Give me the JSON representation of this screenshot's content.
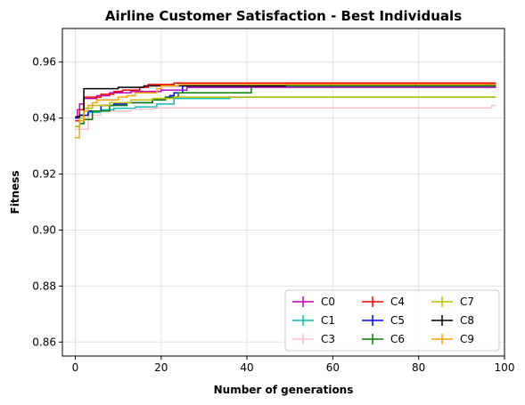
{
  "chart_data": {
    "type": "line",
    "title": "Airline Customer Satisfaction - Best Individuals",
    "xlabel": "Number of generations",
    "ylabel": "Fitness",
    "xlim": [
      -3,
      100
    ],
    "ylim": [
      0.855,
      0.972
    ],
    "xticks": [
      0,
      20,
      40,
      60,
      80,
      100
    ],
    "yticks": [
      0.86,
      0.88,
      0.9,
      0.92,
      0.94,
      0.96
    ],
    "ytick_labels": [
      "0.86",
      "0.88",
      "0.90",
      "0.92",
      "0.94",
      "0.96"
    ],
    "grid": true,
    "legend": {
      "placement": "lower-right",
      "columns": 3
    },
    "series": [
      {
        "name": "C0",
        "color": "#bf00bf",
        "points": [
          [
            0,
            0.94
          ],
          [
            0.5,
            0.943
          ],
          [
            1,
            0.945
          ],
          [
            2,
            0.947
          ],
          [
            5,
            0.948
          ],
          [
            8,
            0.949
          ],
          [
            13,
            0.9495
          ],
          [
            20,
            0.95
          ],
          [
            26,
            0.951
          ],
          [
            98,
            0.951
          ]
        ]
      },
      {
        "name": "C1",
        "color": "#00bfbf",
        "points": [
          [
            0,
            0.936
          ],
          [
            1,
            0.939
          ],
          [
            2,
            0.9395
          ],
          [
            3,
            0.942
          ],
          [
            6,
            0.943
          ],
          [
            9,
            0.9435
          ],
          [
            14,
            0.944
          ],
          [
            19,
            0.945
          ],
          [
            23,
            0.947
          ],
          [
            35,
            0.947
          ],
          [
            36,
            0.9475
          ],
          [
            98,
            0.9475
          ]
        ]
      },
      {
        "name": "C3",
        "color": "#ffc0cb",
        "points": [
          [
            0,
            0.936
          ],
          [
            2,
            0.936
          ],
          [
            3,
            0.941
          ],
          [
            6,
            0.9425
          ],
          [
            13,
            0.9432
          ],
          [
            18,
            0.9436
          ],
          [
            96,
            0.9436
          ],
          [
            97,
            0.9445
          ],
          [
            98,
            0.9445
          ]
        ]
      },
      {
        "name": "C4",
        "color": "#ff0000",
        "points": [
          [
            0,
            0.939
          ],
          [
            1,
            0.943
          ],
          [
            2,
            0.9475
          ],
          [
            6,
            0.9485
          ],
          [
            9,
            0.9495
          ],
          [
            11,
            0.95
          ],
          [
            15,
            0.951
          ],
          [
            17,
            0.952
          ],
          [
            23,
            0.9525
          ],
          [
            98,
            0.9525
          ]
        ]
      },
      {
        "name": "C5",
        "color": "#0000ff",
        "points": [
          [
            0,
            0.94
          ],
          [
            1,
            0.941
          ],
          [
            3,
            0.9425
          ],
          [
            6,
            0.9445
          ],
          [
            9,
            0.945
          ],
          [
            12,
            0.9455
          ],
          [
            18,
            0.9465
          ],
          [
            21,
            0.9475
          ],
          [
            22,
            0.948
          ],
          [
            23,
            0.949
          ],
          [
            25,
            0.9515
          ],
          [
            98,
            0.9515
          ]
        ]
      },
      {
        "name": "C6",
        "color": "#008000",
        "points": [
          [
            0,
            0.937
          ],
          [
            1,
            0.938
          ],
          [
            2,
            0.9395
          ],
          [
            4,
            0.9425
          ],
          [
            8,
            0.9445
          ],
          [
            12,
            0.9455
          ],
          [
            18,
            0.9465
          ],
          [
            21,
            0.9475
          ],
          [
            24,
            0.949
          ],
          [
            40,
            0.949
          ],
          [
            41,
            0.9515
          ],
          [
            98,
            0.9515
          ]
        ]
      },
      {
        "name": "C7",
        "color": "#bfbf00",
        "points": [
          [
            0,
            0.937
          ],
          [
            1,
            0.94
          ],
          [
            2,
            0.9435
          ],
          [
            4,
            0.9445
          ],
          [
            8,
            0.9455
          ],
          [
            13,
            0.9465
          ],
          [
            18,
            0.947
          ],
          [
            23,
            0.9475
          ],
          [
            98,
            0.9475
          ]
        ]
      },
      {
        "name": "C8",
        "color": "#000000",
        "points": [
          [
            0,
            0.9405
          ],
          [
            1,
            0.941
          ],
          [
            2,
            0.9505
          ],
          [
            10,
            0.951
          ],
          [
            15,
            0.951
          ],
          [
            16,
            0.9515
          ],
          [
            48,
            0.9515
          ],
          [
            49,
            0.952
          ],
          [
            98,
            0.952
          ]
        ]
      },
      {
        "name": "C9",
        "color": "#ffa500",
        "points": [
          [
            0,
            0.933
          ],
          [
            1,
            0.939
          ],
          [
            2,
            0.9425
          ],
          [
            3,
            0.9445
          ],
          [
            4,
            0.9455
          ],
          [
            5,
            0.9465
          ],
          [
            10,
            0.9475
          ],
          [
            12,
            0.948
          ],
          [
            14,
            0.949
          ],
          [
            19,
            0.9505
          ],
          [
            20,
            0.9515
          ],
          [
            24,
            0.952
          ],
          [
            98,
            0.952
          ]
        ]
      }
    ]
  }
}
